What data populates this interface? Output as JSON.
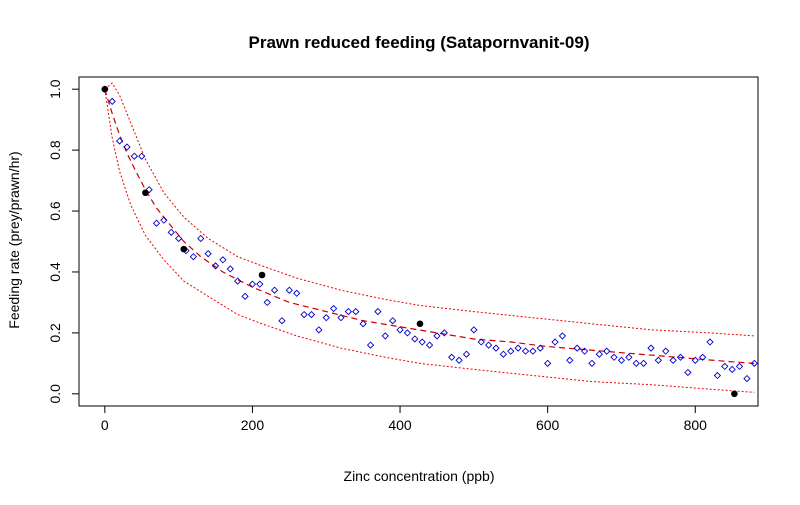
{
  "chart_data": {
    "type": "scatter",
    "title": "Prawn reduced feeding (Satapornvanit-09)",
    "xlabel": "Zinc concentration (ppb)",
    "ylabel": "Feeding rate (prey/prawn/hr)",
    "xlim": [
      -35,
      885
    ],
    "ylim": [
      -0.04,
      1.04
    ],
    "xticks": [
      0,
      200,
      400,
      600,
      800
    ],
    "yticks": [
      0.0,
      0.2,
      0.4,
      0.6,
      0.8,
      1.0
    ],
    "observed": {
      "x": [
        0,
        55,
        107,
        213,
        427,
        853
      ],
      "y": [
        1.0,
        0.66,
        0.475,
        0.39,
        0.23,
        0.0
      ]
    },
    "simulated": {
      "x": [
        0,
        10,
        20,
        30,
        40,
        50,
        60,
        70,
        80,
        90,
        100,
        110,
        120,
        130,
        140,
        150,
        160,
        170,
        180,
        190,
        200,
        210,
        220,
        230,
        240,
        250,
        260,
        270,
        280,
        290,
        300,
        310,
        320,
        330,
        340,
        350,
        360,
        370,
        380,
        390,
        400,
        410,
        420,
        430,
        440,
        450,
        460,
        470,
        480,
        490,
        500,
        510,
        520,
        530,
        540,
        550,
        560,
        570,
        580,
        590,
        600,
        610,
        620,
        630,
        640,
        650,
        660,
        670,
        680,
        690,
        700,
        710,
        720,
        730,
        740,
        750,
        760,
        770,
        780,
        790,
        800,
        810,
        820,
        830,
        840,
        850,
        860,
        870,
        880
      ],
      "y": [
        1.0,
        0.96,
        0.83,
        0.81,
        0.78,
        0.78,
        0.67,
        0.56,
        0.57,
        0.53,
        0.51,
        0.47,
        0.45,
        0.51,
        0.46,
        0.42,
        0.44,
        0.41,
        0.37,
        0.32,
        0.36,
        0.36,
        0.3,
        0.34,
        0.24,
        0.34,
        0.33,
        0.26,
        0.26,
        0.21,
        0.25,
        0.28,
        0.25,
        0.27,
        0.27,
        0.23,
        0.16,
        0.27,
        0.19,
        0.24,
        0.21,
        0.2,
        0.18,
        0.17,
        0.16,
        0.19,
        0.2,
        0.12,
        0.11,
        0.13,
        0.21,
        0.17,
        0.16,
        0.15,
        0.13,
        0.14,
        0.15,
        0.14,
        0.14,
        0.15,
        0.1,
        0.17,
        0.19,
        0.11,
        0.15,
        0.14,
        0.1,
        0.13,
        0.14,
        0.12,
        0.11,
        0.12,
        0.1,
        0.1,
        0.15,
        0.11,
        0.14,
        0.11,
        0.12,
        0.07,
        0.11,
        0.12,
        0.17,
        0.06,
        0.09,
        0.08,
        0.09,
        0.05,
        0.1
      ]
    },
    "fit_median": {
      "x": [
        0,
        10,
        20,
        30,
        40,
        55,
        70,
        90,
        107,
        130,
        160,
        200,
        250,
        300,
        350,
        400,
        450,
        500,
        550,
        600,
        650,
        700,
        750,
        800,
        850,
        880
      ],
      "y": [
        1.0,
        0.92,
        0.85,
        0.79,
        0.74,
        0.67,
        0.61,
        0.55,
        0.5,
        0.45,
        0.4,
        0.35,
        0.3,
        0.27,
        0.24,
        0.22,
        0.2,
        0.18,
        0.17,
        0.155,
        0.145,
        0.135,
        0.125,
        0.115,
        0.105,
        0.1
      ]
    },
    "band_upper": {
      "x": [
        0,
        10,
        20,
        35,
        55,
        80,
        107,
        140,
        180,
        213,
        260,
        320,
        380,
        427,
        500,
        580,
        660,
        740,
        820,
        880
      ],
      "y": [
        1.0,
        1.02,
        0.98,
        0.89,
        0.77,
        0.66,
        0.58,
        0.51,
        0.45,
        0.42,
        0.38,
        0.34,
        0.31,
        0.29,
        0.27,
        0.25,
        0.23,
        0.21,
        0.2,
        0.19
      ]
    },
    "band_lower": {
      "x": [
        0,
        10,
        20,
        35,
        55,
        80,
        107,
        140,
        180,
        213,
        260,
        320,
        380,
        427,
        500,
        580,
        660,
        740,
        820,
        880
      ],
      "y": [
        1.0,
        0.84,
        0.73,
        0.62,
        0.52,
        0.44,
        0.37,
        0.32,
        0.26,
        0.23,
        0.19,
        0.15,
        0.12,
        0.1,
        0.08,
        0.06,
        0.04,
        0.03,
        0.015,
        0.005
      ]
    },
    "colors": {
      "observed": "#000000",
      "simulated": "#0000cc",
      "fit": "#cc0000",
      "band": "#ee0000",
      "axis": "#000000"
    },
    "grid": false,
    "legend": "none"
  }
}
